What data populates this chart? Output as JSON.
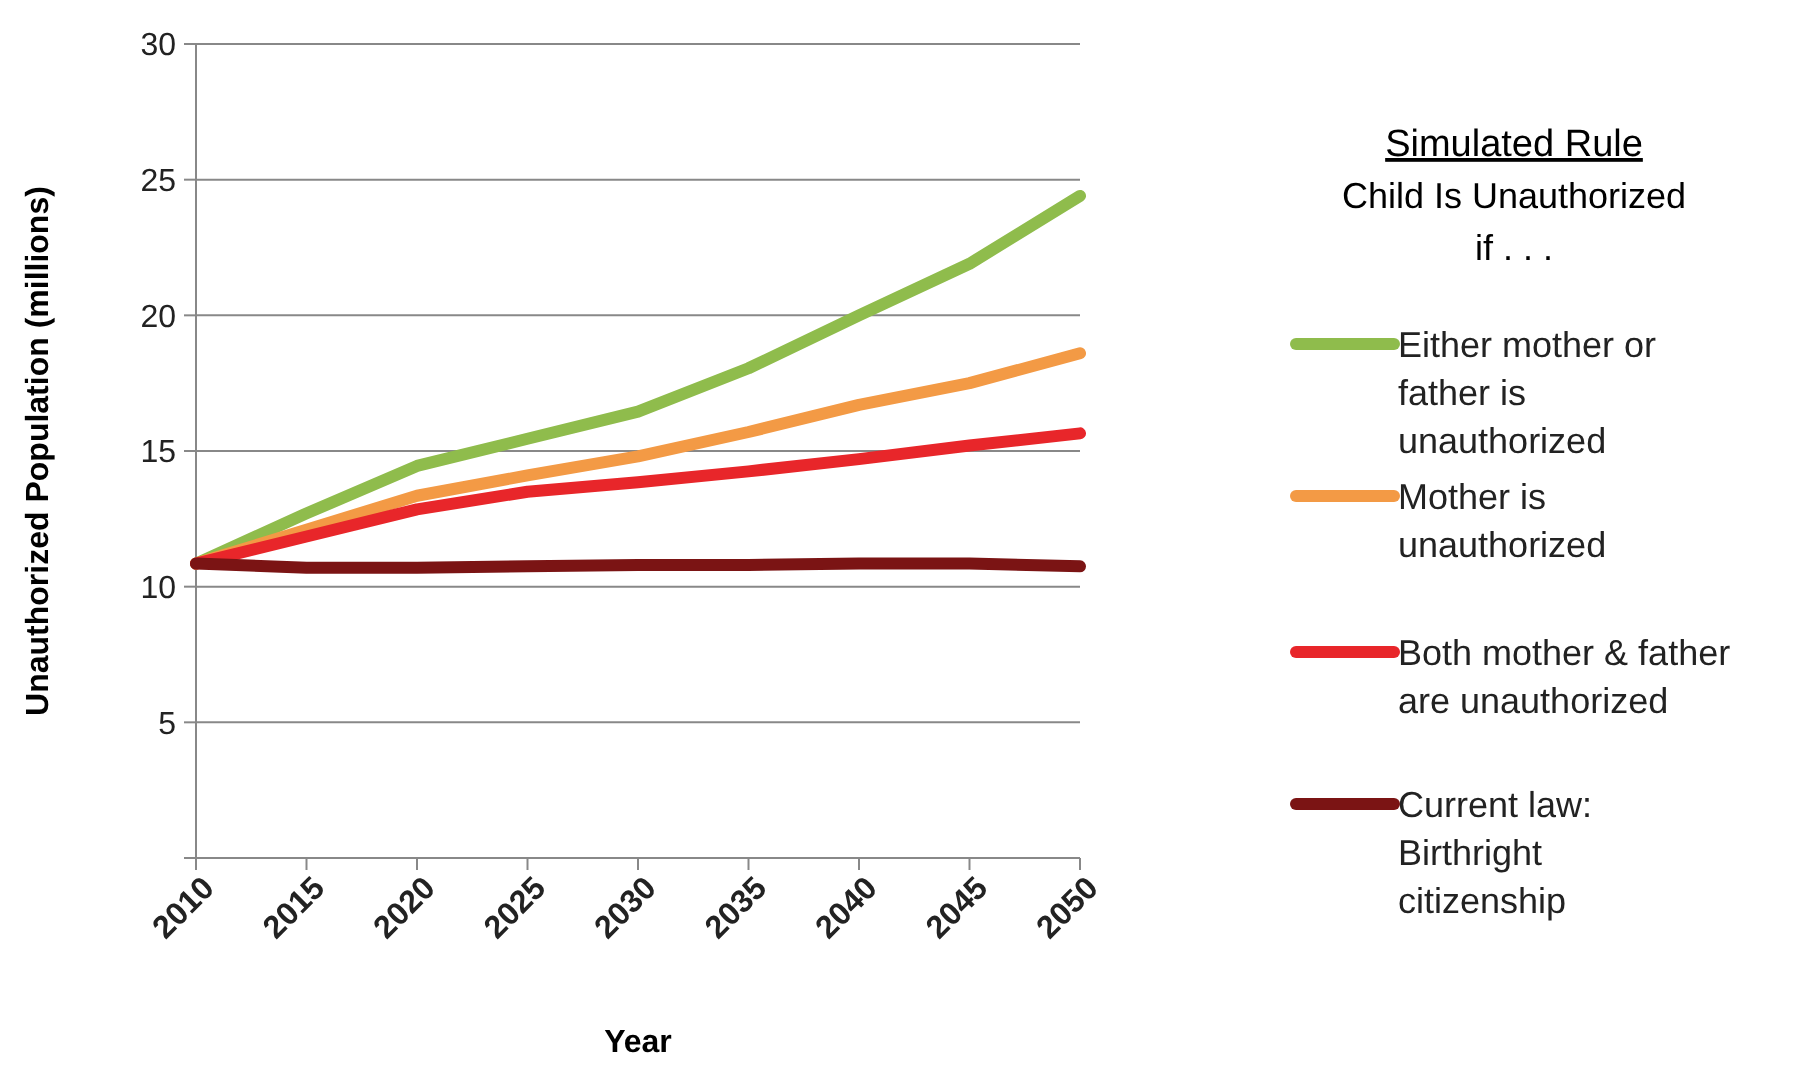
{
  "chart_data": {
    "type": "line",
    "xlabel": "Year",
    "ylabel": "Unauthorized Population (millions)",
    "legend_title": "Simulated Rule\nChild Is Unauthorized\nif . . .",
    "x": [
      2010,
      2015,
      2020,
      2025,
      2030,
      2035,
      2040,
      2045,
      2050
    ],
    "xlim": [
      2010,
      2050
    ],
    "xticks": [
      2010,
      2015,
      2020,
      2025,
      2030,
      2035,
      2040,
      2045,
      2050
    ],
    "ylim": [
      0,
      30
    ],
    "yticks": [
      {
        "value": 0,
        "label": null
      },
      5,
      10,
      15,
      20,
      25,
      30
    ],
    "grid": "y",
    "legend": "right",
    "marker": "none",
    "line_style": "solid",
    "series": [
      {
        "name": "Either mother or father is unauthorized",
        "color": "#8fbc4c",
        "values": [
          10.85,
          12.7,
          14.45,
          15.45,
          16.45,
          18.05,
          20.0,
          21.9,
          24.4
        ]
      },
      {
        "name": "Mother is unauthorized",
        "color": "#f39a45",
        "values": [
          10.85,
          12.1,
          13.35,
          14.1,
          14.8,
          15.7,
          16.7,
          17.5,
          18.6
        ]
      },
      {
        "name": "Both mother & father are unauthorized",
        "color": "#e8262a",
        "values": [
          10.85,
          11.85,
          12.85,
          13.5,
          13.85,
          14.25,
          14.7,
          15.2,
          15.65
        ]
      },
      {
        "name": "Current law: Birthright citizenship",
        "color": "#7b1414",
        "values": [
          10.85,
          10.7,
          10.7,
          10.75,
          10.8,
          10.8,
          10.85,
          10.85,
          10.75
        ]
      }
    ]
  }
}
